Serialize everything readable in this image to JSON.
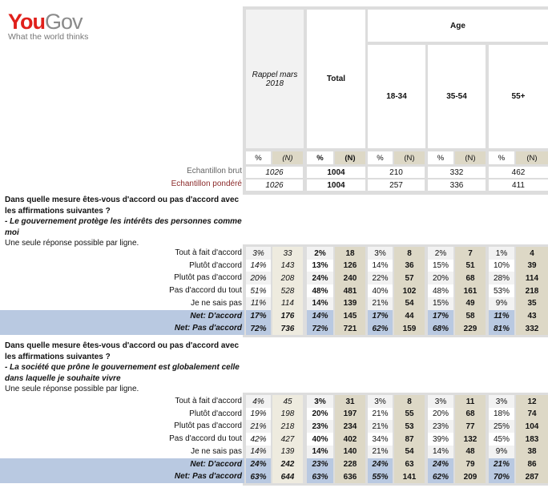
{
  "brand": {
    "name_a": "You",
    "name_b": "Gov",
    "tagline": "What the world thinks"
  },
  "header": {
    "rappel": "Rappel mars 2018",
    "total": "Total",
    "age": "Age",
    "age_groups": [
      "18-34",
      "35-54",
      "55+"
    ],
    "pct": "%",
    "n": "(N)"
  },
  "samples": [
    {
      "label": "Echantillon brut",
      "values": [
        "1026",
        "1004",
        "210",
        "332",
        "462"
      ]
    },
    {
      "label": "Echantillon pondéré",
      "values": [
        "1026",
        "1004",
        "257",
        "336",
        "411"
      ]
    }
  ],
  "questions": [
    {
      "q": "Dans quelle mesure êtes-vous d'accord ou pas d'accord avec les affirmations suivantes ?",
      "item": "- Le gouvernement protège les intérêts des personnes comme moi",
      "note": "Une seule réponse possible par ligne.",
      "rows": [
        {
          "label": "Tout à fait d'accord",
          "values": [
            "3%",
            "33",
            "2%",
            "18",
            "3%",
            "8",
            "2%",
            "7",
            "1%",
            "4"
          ]
        },
        {
          "label": "Plutôt d'accord",
          "values": [
            "14%",
            "143",
            "13%",
            "126",
            "14%",
            "36",
            "15%",
            "51",
            "10%",
            "39"
          ]
        },
        {
          "label": "Plutôt pas d'accord",
          "values": [
            "20%",
            "208",
            "24%",
            "240",
            "22%",
            "57",
            "20%",
            "68",
            "28%",
            "114"
          ]
        },
        {
          "label": "Pas d'accord du tout",
          "values": [
            "51%",
            "528",
            "48%",
            "481",
            "40%",
            "102",
            "48%",
            "161",
            "53%",
            "218"
          ]
        },
        {
          "label": "Je ne sais pas",
          "values": [
            "11%",
            "114",
            "14%",
            "139",
            "21%",
            "54",
            "15%",
            "49",
            "9%",
            "35"
          ]
        },
        {
          "label": "Net: D'accord",
          "net": true,
          "values": [
            "17%",
            "176",
            "14%",
            "145",
            "17%",
            "44",
            "17%",
            "58",
            "11%",
            "43"
          ]
        },
        {
          "label": "Net: Pas d'accord",
          "net": true,
          "values": [
            "72%",
            "736",
            "72%",
            "721",
            "62%",
            "159",
            "68%",
            "229",
            "81%",
            "332"
          ]
        }
      ]
    },
    {
      "q": "Dans quelle mesure êtes-vous d'accord ou pas d'accord avec les affirmations suivantes ?",
      "item": "- La société que prône le gouvernement est globalement celle dans laquelle je souhaite vivre",
      "note": "Une seule réponse possible par ligne.",
      "rows": [
        {
          "label": "Tout à fait d'accord",
          "values": [
            "4%",
            "45",
            "3%",
            "31",
            "3%",
            "8",
            "3%",
            "11",
            "3%",
            "12"
          ]
        },
        {
          "label": "Plutôt d'accord",
          "values": [
            "19%",
            "198",
            "20%",
            "197",
            "21%",
            "55",
            "20%",
            "68",
            "18%",
            "74"
          ]
        },
        {
          "label": "Plutôt pas d'accord",
          "values": [
            "21%",
            "218",
            "23%",
            "234",
            "21%",
            "53",
            "23%",
            "77",
            "25%",
            "104"
          ]
        },
        {
          "label": "Pas d'accord du tout",
          "values": [
            "42%",
            "427",
            "40%",
            "402",
            "34%",
            "87",
            "39%",
            "132",
            "45%",
            "183"
          ]
        },
        {
          "label": "Je ne sais pas",
          "values": [
            "14%",
            "139",
            "14%",
            "140",
            "21%",
            "54",
            "14%",
            "48",
            "9%",
            "38"
          ]
        },
        {
          "label": "Net: D'accord",
          "net": true,
          "values": [
            "24%",
            "242",
            "23%",
            "228",
            "24%",
            "63",
            "24%",
            "79",
            "21%",
            "86"
          ]
        },
        {
          "label": "Net: Pas d'accord",
          "net": true,
          "values": [
            "63%",
            "644",
            "63%",
            "636",
            "55%",
            "141",
            "62%",
            "209",
            "70%",
            "287"
          ]
        }
      ]
    }
  ],
  "colors": {
    "brand_red": "#e0201b",
    "n_col": "#ddd8c6",
    "net_blue": "#b9c9e1",
    "sample_weighted": "#8b2a2a"
  }
}
